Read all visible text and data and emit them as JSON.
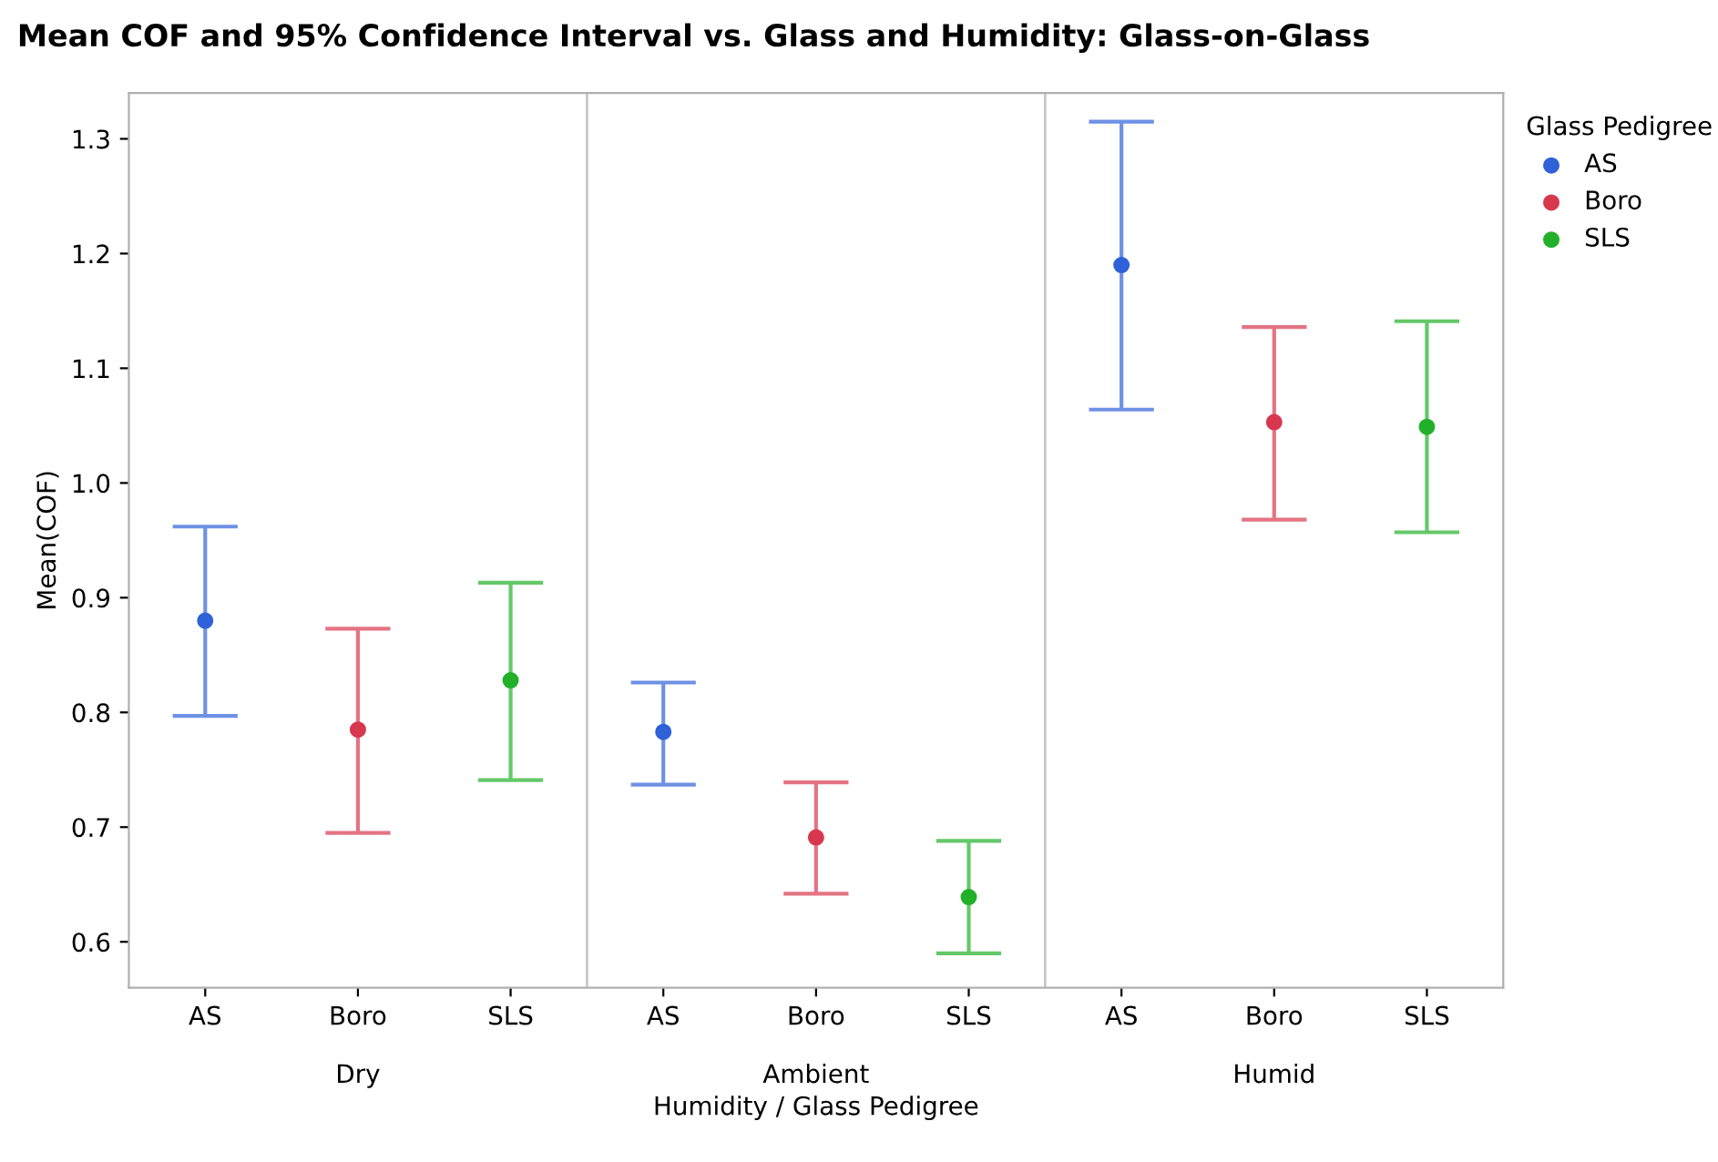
{
  "chart_data": {
    "type": "scatter",
    "title": "Mean COF and 95% Confidence Interval vs. Glass and Humidity: Glass-on-Glass",
    "ylabel": "Mean(COF)",
    "xlabel": "Humidity / Glass Pedigree",
    "legend_title": "Glass Pedigree",
    "categories": [
      "AS",
      "Boro",
      "SLS",
      "AS",
      "Boro",
      "SLS",
      "AS",
      "Boro",
      "SLS"
    ],
    "annotations": [
      "Dry",
      "Ambient",
      "Humid"
    ],
    "ylim": [
      0.56,
      1.34
    ],
    "yticks": [
      0.6,
      0.7,
      0.8,
      0.9,
      {
        "value": 1,
        "label": "1.0"
      },
      1.1,
      1.2,
      1.3
    ],
    "marker": "circle",
    "grid": false,
    "legend": "top right",
    "series": [
      {
        "name": "AS",
        "color": "#2f62d8",
        "values": [
          0.88,
          null,
          null,
          0.783,
          null,
          null,
          1.19,
          null,
          null
        ],
        "errors": [
          [
            0.797,
            0.962
          ],
          null,
          null,
          [
            0.737,
            0.826
          ],
          null,
          null,
          [
            1.064,
            1.315
          ],
          null,
          null
        ]
      },
      {
        "name": "Boro",
        "color": "#d8384f",
        "values": [
          null,
          0.785,
          null,
          null,
          0.691,
          null,
          null,
          1.053,
          null
        ],
        "errors": [
          null,
          [
            0.695,
            0.873
          ],
          null,
          null,
          [
            0.642,
            0.739
          ],
          null,
          null,
          [
            0.968,
            1.136
          ],
          null
        ]
      },
      {
        "name": "SLS",
        "color": "#22b02a",
        "values": [
          null,
          null,
          0.828,
          null,
          null,
          0.639,
          null,
          null,
          1.049
        ],
        "errors": [
          null,
          null,
          [
            0.741,
            0.913
          ],
          null,
          null,
          [
            0.59,
            0.688
          ],
          null,
          null,
          [
            0.957,
            1.141
          ]
        ]
      }
    ]
  }
}
